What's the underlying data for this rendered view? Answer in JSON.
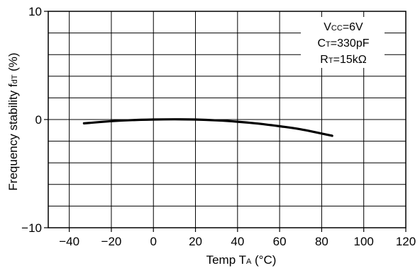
{
  "chart_data": {
    "type": "line",
    "x_axis": {
      "label_prefix": "Temp T",
      "label_sub": "A",
      "label_suffix": " (°C)",
      "ticks": [
        -40,
        -20,
        0,
        20,
        40,
        60,
        80,
        100,
        120
      ],
      "tick_labels": [
        "−40",
        "−20",
        "0",
        "20",
        "40",
        "60",
        "80",
        "100",
        "120"
      ],
      "range": [
        -50,
        120
      ]
    },
    "y_axis": {
      "label_prefix": "Frequency stability f",
      "label_sub": "dT",
      "label_suffix": " (%)",
      "tick_labels": [
        {
          "value": 10,
          "text": "10"
        },
        {
          "value": 0,
          "text": "0"
        },
        {
          "value": -10,
          "text": "−10"
        }
      ],
      "range": [
        -10,
        10
      ],
      "grid_step": 2
    },
    "grid": true,
    "series": [
      {
        "x": [
          -33,
          -20,
          -10,
          0,
          10,
          20,
          30,
          40,
          50,
          60,
          70,
          85
        ],
        "y": [
          -0.35,
          -0.15,
          -0.05,
          0.0,
          0.02,
          0.0,
          -0.08,
          -0.2,
          -0.38,
          -0.62,
          -0.9,
          -1.5
        ],
        "color": "#000000"
      }
    ],
    "annotations": [
      {
        "prefix": "V",
        "sub": "CC",
        "suffix": "=6V"
      },
      {
        "prefix": "C",
        "sub": "T",
        "suffix": "=330pF"
      },
      {
        "prefix": "R",
        "sub": "T",
        "suffix": "=15kΩ"
      }
    ]
  }
}
